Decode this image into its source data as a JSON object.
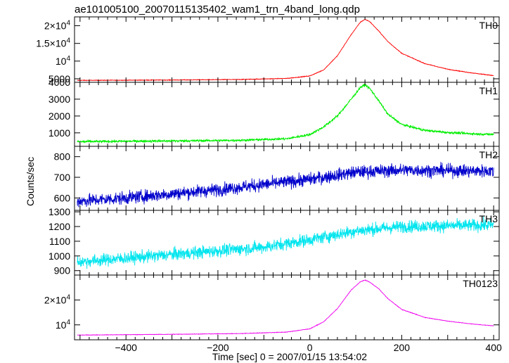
{
  "chart_data": {
    "type": "line",
    "title": "ae101005100_20070115135402_wam1_trn_4band_long.qdp",
    "xlabel": "Time [sec] 0 = 2007/01/15 13:54:02",
    "ylabel": "Counts/sec",
    "xlim": [
      -512,
      412
    ],
    "x_ticks": [
      {
        "v": -400,
        "label": "−400"
      },
      {
        "v": -200,
        "label": "−200"
      },
      {
        "v": 0,
        "label": "0"
      },
      {
        "v": 200,
        "label": "200"
      },
      {
        "v": 400,
        "label": "400"
      }
    ],
    "grid": false,
    "panels": [
      {
        "name": "TH0",
        "color": "#ff0000",
        "ylim": [
          4000,
          22500
        ],
        "ticks": [
          {
            "v": 5000,
            "label": "5000",
            "sup": ""
          },
          {
            "v": 10000,
            "label": "10",
            "sup": "4"
          },
          {
            "v": 15000,
            "label": "1.5×10",
            "sup": "4"
          },
          {
            "v": 20000,
            "label": "2×10",
            "sup": "4"
          }
        ],
        "edge_label": "4000",
        "noise": 60,
        "data": {
          "x": [
            -500,
            -300,
            -150,
            -50,
            0,
            30,
            60,
            90,
            110,
            120,
            130,
            150,
            170,
            200,
            250,
            300,
            350,
            400
          ],
          "y": [
            4550,
            4650,
            4800,
            5100,
            5800,
            7500,
            11500,
            17500,
            21000,
            21800,
            21200,
            18500,
            15500,
            12200,
            9300,
            7700,
            6700,
            5900
          ]
        }
      },
      {
        "name": "TH1",
        "color": "#00ee00",
        "ylim": [
          200,
          4000
        ],
        "ticks": [
          {
            "v": 1000,
            "label": "1000",
            "sup": ""
          },
          {
            "v": 2000,
            "label": "2000",
            "sup": ""
          },
          {
            "v": 3000,
            "label": "3000",
            "sup": ""
          }
        ],
        "edge_label": "",
        "noise": 50,
        "data": {
          "x": [
            -500,
            -300,
            -150,
            -50,
            0,
            30,
            60,
            90,
            110,
            120,
            130,
            150,
            170,
            200,
            250,
            300,
            350,
            400
          ],
          "y": [
            480,
            520,
            560,
            650,
            900,
            1350,
            2000,
            3000,
            3700,
            3850,
            3650,
            2900,
            2100,
            1500,
            1150,
            1020,
            950,
            900
          ]
        }
      },
      {
        "name": "TH2",
        "color": "#0000cc",
        "ylim": [
          540,
          850
        ],
        "ticks": [
          {
            "v": 600,
            "label": "600",
            "sup": ""
          },
          {
            "v": 700,
            "label": "700",
            "sup": ""
          },
          {
            "v": 800,
            "label": "800",
            "sup": ""
          }
        ],
        "edge_label": "",
        "noise": 22,
        "data": {
          "x": [
            -500,
            -400,
            -200,
            0,
            100,
            200,
            400
          ],
          "y": [
            585,
            600,
            640,
            690,
            725,
            735,
            730
          ]
        }
      },
      {
        "name": "TH3",
        "color": "#00e5ee",
        "ylim": [
          870,
          1310
        ],
        "ticks": [
          {
            "v": 900,
            "label": "900",
            "sup": ""
          },
          {
            "v": 1000,
            "label": "1000",
            "sup": ""
          },
          {
            "v": 1100,
            "label": "1100",
            "sup": ""
          },
          {
            "v": 1200,
            "label": "1200",
            "sup": ""
          },
          {
            "v": 1300,
            "label": "1300",
            "sup": ""
          }
        ],
        "edge_label": "",
        "noise": 30,
        "data": {
          "x": [
            -500,
            -300,
            -100,
            0,
            100,
            200,
            400
          ],
          "y": [
            960,
            1010,
            1060,
            1110,
            1170,
            1200,
            1210
          ]
        }
      },
      {
        "name": "TH0123",
        "color": "#ee00ee",
        "ylim": [
          4000,
          30000
        ],
        "ticks": [
          {
            "v": 10000,
            "label": "10",
            "sup": "4"
          },
          {
            "v": 20000,
            "label": "2×10",
            "sup": "4"
          }
        ],
        "edge_label": "",
        "noise": 70,
        "data": {
          "x": [
            -500,
            -300,
            -150,
            -50,
            0,
            30,
            60,
            90,
            110,
            120,
            130,
            150,
            170,
            200,
            250,
            300,
            350,
            400
          ],
          "y": [
            5900,
            6200,
            6500,
            7100,
            8400,
            11200,
            16500,
            24000,
            27300,
            28000,
            27200,
            24500,
            20500,
            16200,
            13000,
            11500,
            10400,
            9600
          ]
        }
      }
    ]
  }
}
